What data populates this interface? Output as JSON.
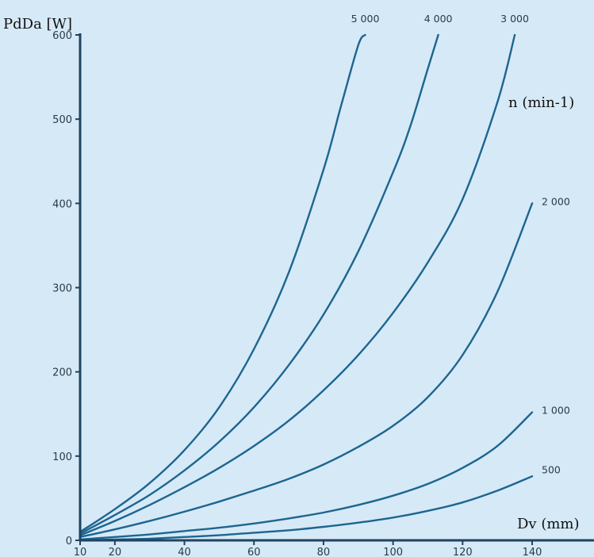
{
  "chart_data": {
    "type": "line",
    "ylabel": "PdDa [W]",
    "xlabel": "Dv (mm)",
    "legend_title": "n (min-1)",
    "xlim": [
      10,
      140
    ],
    "ylim": [
      0,
      600
    ],
    "x_ticks": [
      10,
      20,
      40,
      60,
      80,
      100,
      120,
      140
    ],
    "y_ticks": [
      0,
      100,
      200,
      300,
      400,
      500,
      600
    ],
    "grid": false,
    "series": [
      {
        "name": "5 000",
        "x": [
          10,
          20,
          30,
          40,
          50,
          60,
          70,
          80,
          85,
          90,
          92
        ],
        "y": [
          10,
          37,
          68,
          107,
          158,
          227,
          318,
          440,
          515,
          588,
          600
        ]
      },
      {
        "name": "4 000",
        "x": [
          10,
          20,
          30,
          40,
          50,
          60,
          70,
          80,
          90,
          100,
          105,
          110,
          113
        ],
        "y": [
          8,
          30,
          54,
          83,
          117,
          158,
          208,
          268,
          343,
          437,
          492,
          560,
          600
        ]
      },
      {
        "name": "3 000",
        "x": [
          10,
          20,
          30,
          40,
          50,
          60,
          70,
          80,
          90,
          100,
          110,
          120,
          130,
          135
        ],
        "y": [
          6,
          23,
          42,
          63,
          86,
          112,
          142,
          178,
          220,
          270,
          330,
          405,
          520,
          600
        ]
      },
      {
        "name": "2 000",
        "x": [
          10,
          20,
          30,
          40,
          50,
          60,
          70,
          80,
          90,
          100,
          110,
          120,
          130,
          140
        ],
        "y": [
          4,
          13,
          23,
          34,
          46,
          59,
          73,
          90,
          111,
          136,
          170,
          220,
          295,
          400
        ]
      },
      {
        "name": "1 000",
        "x": [
          10,
          20,
          30,
          40,
          50,
          60,
          70,
          80,
          90,
          100,
          110,
          120,
          130,
          140
        ],
        "y": [
          1,
          4,
          7,
          11,
          15,
          20,
          26,
          33,
          42,
          53,
          67,
          86,
          112,
          152
        ]
      },
      {
        "name": "500",
        "x": [
          10,
          20,
          30,
          40,
          50,
          60,
          70,
          80,
          90,
          100,
          110,
          120,
          130,
          140
        ],
        "y": [
          0,
          1,
          2,
          4,
          6,
          9,
          12,
          16,
          21,
          27,
          35,
          45,
          59,
          76
        ]
      }
    ]
  }
}
